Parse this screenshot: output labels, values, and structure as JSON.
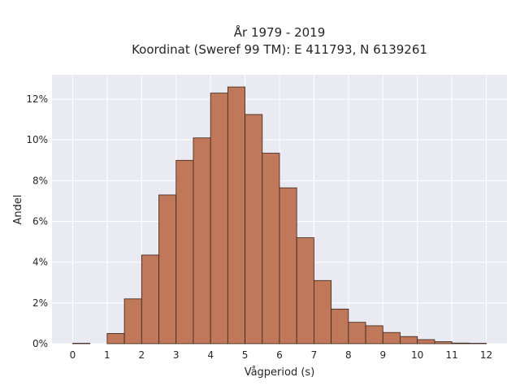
{
  "chart_data": {
    "type": "bar",
    "title": "År 1979 - 2019",
    "subtitle": "Koordinat (Sweref 99 TM): E 411793, N 6139261",
    "xlabel": "Vågperiod (s)",
    "ylabel": "Andel",
    "xlim": [
      -0.6,
      12.6
    ],
    "ylim": [
      0,
      13.2
    ],
    "x_ticks": [
      "0",
      "1",
      "2",
      "3",
      "4",
      "5",
      "6",
      "7",
      "8",
      "9",
      "10",
      "11",
      "12"
    ],
    "y_ticks": [
      "0%",
      "2%",
      "4%",
      "6%",
      "8%",
      "10%",
      "12%"
    ],
    "y_tick_values": [
      0,
      2,
      4,
      6,
      8,
      10,
      12
    ],
    "bin_width": 0.5,
    "bins": [
      {
        "x0": 0.0,
        "value": 0.02
      },
      {
        "x0": 0.5,
        "value": 0.0
      },
      {
        "x0": 1.0,
        "value": 0.5
      },
      {
        "x0": 1.5,
        "value": 2.2
      },
      {
        "x0": 2.0,
        "value": 4.35
      },
      {
        "x0": 2.5,
        "value": 7.3
      },
      {
        "x0": 3.0,
        "value": 9.0
      },
      {
        "x0": 3.5,
        "value": 10.1
      },
      {
        "x0": 4.0,
        "value": 12.3
      },
      {
        "x0": 4.5,
        "value": 12.6
      },
      {
        "x0": 5.0,
        "value": 11.25
      },
      {
        "x0": 5.5,
        "value": 9.35
      },
      {
        "x0": 6.0,
        "value": 7.65
      },
      {
        "x0": 6.5,
        "value": 5.2
      },
      {
        "x0": 7.0,
        "value": 3.1
      },
      {
        "x0": 7.5,
        "value": 1.7
      },
      {
        "x0": 8.0,
        "value": 1.05
      },
      {
        "x0": 8.5,
        "value": 0.88
      },
      {
        "x0": 9.0,
        "value": 0.55
      },
      {
        "x0": 9.5,
        "value": 0.35
      },
      {
        "x0": 10.0,
        "value": 0.2
      },
      {
        "x0": 10.5,
        "value": 0.1
      },
      {
        "x0": 11.0,
        "value": 0.03
      },
      {
        "x0": 11.5,
        "value": 0.02
      }
    ],
    "grid": true,
    "colors": {
      "bar_fill": "#c0785a",
      "bar_edge": "#3a2418",
      "plot_bg": "#eaeaf2",
      "grid": "#ffffff"
    }
  }
}
